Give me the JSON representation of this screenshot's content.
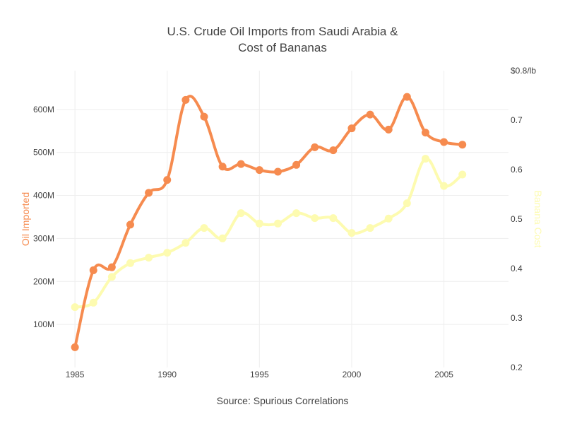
{
  "chart_data": {
    "type": "line",
    "title_line1": "U.S. Crude Oil Imports from Saudi Arabia &",
    "title_line2": "Cost of Bananas",
    "source": "Source: Spurious Correlations",
    "x": [
      1985,
      1986,
      1987,
      1988,
      1989,
      1990,
      1991,
      1992,
      1993,
      1994,
      1995,
      1996,
      1997,
      1998,
      1999,
      2000,
      2001,
      2002,
      2003,
      2004,
      2005,
      2006
    ],
    "x_ticks": [
      1985,
      1990,
      1995,
      2000,
      2005
    ],
    "xlim": [
      1984,
      2008.5
    ],
    "y_left": {
      "label": "Oil Imported",
      "ticks": [
        100,
        200,
        300,
        400,
        500,
        600
      ],
      "tick_labels": [
        "100M",
        "200M",
        "300M",
        "400M",
        "500M",
        "600M"
      ],
      "range": [
        0,
        690
      ]
    },
    "y_right": {
      "label": "Banana Cost",
      "ticks": [
        0.2,
        0.3,
        0.4,
        0.5,
        0.6,
        0.7,
        0.8
      ],
      "tick_labels": [
        "0.2",
        "0.3",
        "0.4",
        "0.5",
        "0.6",
        "0.7",
        "$0.8/lb"
      ],
      "range": [
        0.2,
        0.8
      ]
    },
    "series": [
      {
        "name": "Oil Imported",
        "axis": "left",
        "color": "#f68b4f",
        "values": [
          47,
          226,
          233,
          332,
          406,
          436,
          622,
          583,
          467,
          473,
          459,
          455,
          471,
          512,
          505,
          556,
          588,
          553,
          629,
          546,
          524,
          518
        ]
      },
      {
        "name": "Banana Cost",
        "axis": "right",
        "color": "#fdfbb0",
        "values": [
          0.322,
          0.331,
          0.383,
          0.411,
          0.422,
          0.432,
          0.452,
          0.482,
          0.461,
          0.512,
          0.491,
          0.491,
          0.512,
          0.502,
          0.502,
          0.472,
          0.482,
          0.501,
          0.532,
          0.622,
          0.567,
          0.59
        ]
      }
    ],
    "grid": true
  }
}
